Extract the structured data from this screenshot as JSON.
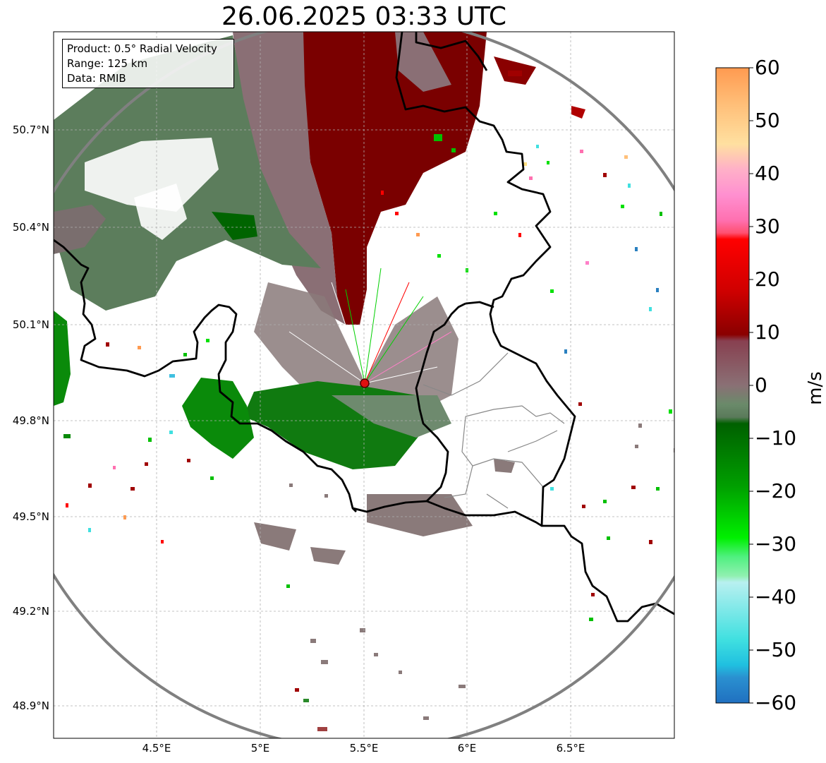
{
  "title": "26.06.2025 03:33 UTC",
  "info": {
    "product": "Product: 0.5° Radial Velocity",
    "range": "Range: 125 km",
    "data": "Data: RMIB"
  },
  "latitude_labels": [
    "50.7°N",
    "50.4°N",
    "50.1°N",
    "49.8°N",
    "49.5°N",
    "49.2°N",
    "48.9°N"
  ],
  "longitude_labels": [
    "4.5°E",
    "5°E",
    "5.5°E",
    "6°E",
    "6.5°E"
  ],
  "colorbar": {
    "label": "m/s",
    "ticks": [
      "60",
      "50",
      "40",
      "30",
      "20",
      "10",
      "0",
      "−10",
      "−20",
      "−30",
      "−40",
      "−50",
      "−60"
    ],
    "range": [
      -60,
      60
    ]
  },
  "colors": {
    "approaching_dark": "#006400",
    "approaching_bright": "#00e000",
    "approaching_light": "#8ef0a8",
    "approaching_extreme": "#2a80c0",
    "receding_dark": "#7a0000",
    "receding_bright": "#ff0000",
    "receding_pink": "#ff80c8",
    "receding_extreme": "#ff9a50",
    "near_zero": "#8a7a7a",
    "range_ring": "#808080"
  }
}
